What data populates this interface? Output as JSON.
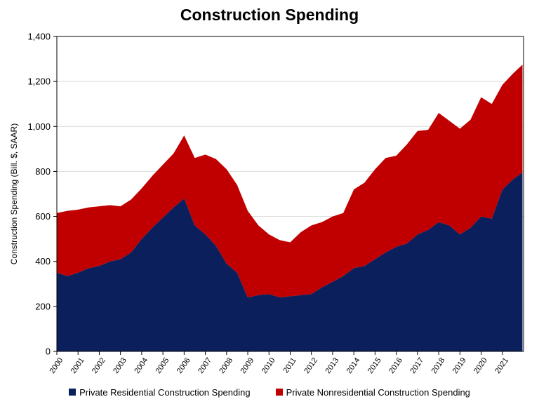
{
  "chart_data": {
    "type": "area",
    "stacked": true,
    "title": "Construction Spending",
    "ylabel": "Construction Spending (Bill. $, SAAR)",
    "xlabel": "",
    "ylim": [
      0,
      1400
    ],
    "yticks": [
      0,
      200,
      400,
      600,
      800,
      1000,
      1200,
      1400
    ],
    "ytick_labels": [
      "0",
      "200",
      "400",
      "600",
      "800",
      "1,000",
      "1,200",
      "1,400"
    ],
    "xlim": [
      2000,
      2022
    ],
    "xticks": [
      "2000",
      "2001",
      "2002",
      "2003",
      "2004",
      "2005",
      "2006",
      "2007",
      "2008",
      "2009",
      "2010",
      "2011",
      "2012",
      "2013",
      "2014",
      "2015",
      "2016",
      "2017",
      "2018",
      "2019",
      "2020",
      "2021"
    ],
    "grid": "horizontal",
    "legend_position": "bottom",
    "x": [
      2000.0,
      2000.5,
      2001.0,
      2001.5,
      2002.0,
      2002.5,
      2003.0,
      2003.5,
      2004.0,
      2004.5,
      2005.0,
      2005.5,
      2006.0,
      2006.5,
      2007.0,
      2007.5,
      2008.0,
      2008.5,
      2009.0,
      2009.5,
      2010.0,
      2010.5,
      2011.0,
      2011.5,
      2012.0,
      2012.5,
      2013.0,
      2013.5,
      2014.0,
      2014.5,
      2015.0,
      2015.5,
      2016.0,
      2016.5,
      2017.0,
      2017.5,
      2018.0,
      2018.5,
      2019.0,
      2019.5,
      2020.0,
      2020.5,
      2021.0,
      2021.5,
      2021.95
    ],
    "series": [
      {
        "name": "Private Residential Construction Spending",
        "color": "#0b1f5c",
        "values": [
          350,
          335,
          350,
          370,
          380,
          400,
          410,
          440,
          500,
          550,
          595,
          640,
          680,
          560,
          520,
          470,
          390,
          350,
          240,
          250,
          255,
          240,
          245,
          250,
          255,
          285,
          310,
          335,
          370,
          380,
          410,
          440,
          465,
          480,
          520,
          540,
          575,
          560,
          520,
          550,
          600,
          590,
          720,
          765,
          795
        ]
      },
      {
        "name": "Private Nonresidential Construction Spending",
        "color": "#c00000",
        "values": [
          265,
          290,
          280,
          270,
          265,
          250,
          235,
          235,
          225,
          230,
          235,
          240,
          280,
          300,
          355,
          385,
          420,
          390,
          385,
          310,
          265,
          255,
          240,
          280,
          305,
          290,
          290,
          280,
          350,
          370,
          400,
          420,
          405,
          440,
          460,
          445,
          485,
          465,
          470,
          480,
          530,
          510,
          465,
          470,
          480
        ]
      }
    ]
  }
}
